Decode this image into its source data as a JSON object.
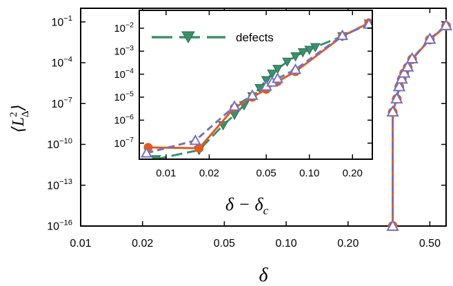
{
  "chart_data": [
    {
      "id": "main",
      "type": "line",
      "xscale": "log",
      "yscale": "log",
      "xlim": [
        0.01,
        0.6
      ],
      "ylim": [
        1e-16,
        1
      ],
      "xlabel": "δ",
      "ylabel": "⟨L²_Δ⟩",
      "xticks": [
        {
          "v": 0.01,
          "label": "0.01"
        },
        {
          "v": 0.02,
          "label": "0.02"
        },
        {
          "v": 0.05,
          "label": "0.05"
        },
        {
          "v": 0.1,
          "label": "0.10"
        },
        {
          "v": 0.2,
          "label": "0.20"
        },
        {
          "v": 0.5,
          "label": "0.50"
        }
      ],
      "yticks": [
        {
          "v": 0.1,
          "base": "10",
          "exp": "−1"
        },
        {
          "v": 0.0001,
          "base": "10",
          "exp": "−4"
        },
        {
          "v": 1e-07,
          "base": "10",
          "exp": "−7"
        },
        {
          "v": 1e-10,
          "base": "10",
          "exp": "−10"
        },
        {
          "v": 1e-13,
          "base": "10",
          "exp": "−13"
        },
        {
          "v": 1e-16,
          "base": "10",
          "exp": "−16"
        }
      ],
      "series": [
        {
          "marker": "circle",
          "color": "#e35a1e",
          "dash": "none",
          "points": [
            [
              0.33,
              1e-16
            ],
            [
              0.33,
              2.3e-08
            ],
            [
              0.345,
              2.2e-07
            ],
            [
              0.355,
              1.7e-06
            ],
            [
              0.365,
              6.2e-06
            ],
            [
              0.375,
              1.7e-05
            ],
            [
              0.39,
              4.5e-05
            ],
            [
              0.41,
              0.00018
            ],
            [
              0.5,
              0.005
            ],
            [
              0.6,
              0.05
            ]
          ]
        },
        {
          "marker": "triangle-up-open",
          "color": "#7272c2",
          "dash": "10,6",
          "points": [
            [
              0.33,
              1e-16
            ],
            [
              0.33,
              2.5e-08
            ],
            [
              0.345,
              2.3e-07
            ],
            [
              0.355,
              1.8e-06
            ],
            [
              0.365,
              6.5e-06
            ],
            [
              0.375,
              1.8e-05
            ],
            [
              0.39,
              5e-05
            ],
            [
              0.41,
              0.0002
            ],
            [
              0.5,
              0.0055
            ],
            [
              0.6,
              0.055
            ]
          ]
        }
      ]
    },
    {
      "id": "inset",
      "type": "line",
      "xscale": "log",
      "yscale": "log",
      "xlim": [
        0.0065,
        0.275
      ],
      "ylim": [
        2e-08,
        0.06
      ],
      "xlabel": "δ − δ_c",
      "xticks": [
        {
          "v": 0.01,
          "label": "0.01"
        },
        {
          "v": 0.02,
          "label": "0.02"
        },
        {
          "v": 0.05,
          "label": "0.05"
        },
        {
          "v": 0.1,
          "label": "0.10"
        },
        {
          "v": 0.2,
          "label": "0.20"
        }
      ],
      "yticks": [
        {
          "v": 0.01,
          "base": "10",
          "exp": "−2"
        },
        {
          "v": 0.001,
          "base": "10",
          "exp": "−3"
        },
        {
          "v": 0.0001,
          "base": "10",
          "exp": "−4"
        },
        {
          "v": 1e-05,
          "base": "10",
          "exp": "−5"
        },
        {
          "v": 1e-06,
          "base": "10",
          "exp": "−6"
        },
        {
          "v": 1e-07,
          "base": "10",
          "exp": "−7"
        }
      ],
      "legend": {
        "label": "defects",
        "placement": "top-left"
      },
      "series": [
        {
          "name": "defects",
          "marker": "triangle-down-filled",
          "color": "#3d8f6c",
          "dash": "16,7",
          "points": [
            [
              0.0085,
              2e-08
            ],
            [
              0.017,
              5e-08
            ],
            [
              0.025,
              6e-07
            ],
            [
              0.03,
              1.7e-06
            ],
            [
              0.035,
              4.4e-06
            ],
            [
              0.04,
              1.1e-05
            ],
            [
              0.045,
              2.5e-05
            ],
            [
              0.05,
              5.5e-05
            ],
            [
              0.055,
              0.000105
            ],
            [
              0.06,
              0.00017
            ],
            [
              0.07,
              0.00035
            ],
            [
              0.08,
              0.0006
            ],
            [
              0.09,
              0.0009
            ],
            [
              0.1,
              0.00115
            ],
            [
              0.11,
              0.0015
            ],
            [
              0.17,
              0.0045
            ],
            [
              0.26,
              0.016
            ]
          ]
        },
        {
          "marker": "circle",
          "color": "#e35a1e",
          "dash": "none",
          "points": [
            [
              0.0075,
              6.5e-08
            ],
            [
              0.017,
              6e-08
            ],
            [
              0.03,
              3.5e-06
            ],
            [
              0.04,
              1e-05
            ],
            [
              0.05,
              2.2e-05
            ],
            [
              0.06,
              4.8e-05
            ],
            [
              0.08,
              0.00013
            ],
            [
              0.17,
              0.0045
            ],
            [
              0.26,
              0.017
            ]
          ]
        },
        {
          "marker": "triangle-up-open",
          "color": "#7272c2",
          "dash": "10,6",
          "points": [
            [
              0.0073,
              3.7e-08
            ],
            [
              0.016,
              1.3e-07
            ],
            [
              0.03,
              4e-06
            ],
            [
              0.04,
              1.2e-05
            ],
            [
              0.05,
              3e-05
            ],
            [
              0.055,
              4.5e-05
            ],
            [
              0.06,
              6.5e-05
            ],
            [
              0.08,
              0.00016
            ],
            [
              0.17,
              0.0048
            ],
            [
              0.26,
              0.015
            ]
          ]
        }
      ]
    }
  ]
}
